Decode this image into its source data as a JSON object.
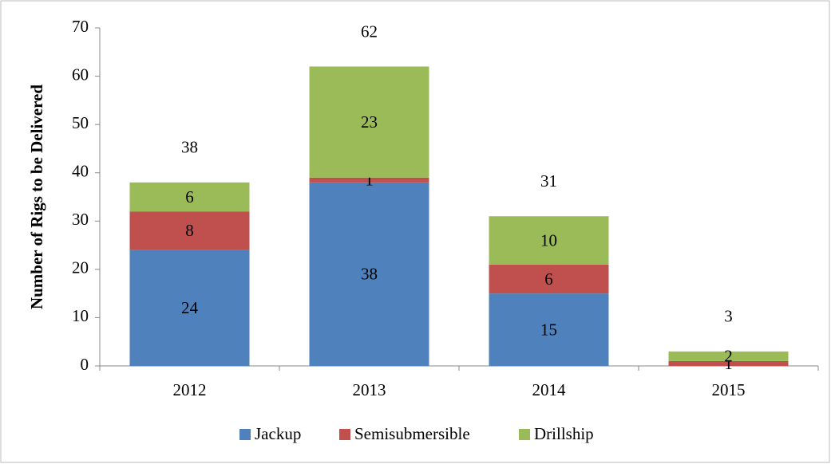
{
  "chart_data": {
    "type": "stacked_bar",
    "y_label": "Number  of Rigs to be Delivered",
    "categories": [
      "2012",
      "2013",
      "2014",
      "2015"
    ],
    "series": [
      {
        "name": "Jackup",
        "color": "#4f81bd",
        "values": [
          24,
          38,
          15,
          0
        ]
      },
      {
        "name": "Semisubmersible",
        "color": "#c0504d",
        "values": [
          8,
          1,
          6,
          1
        ]
      },
      {
        "name": "Drillship",
        "color": "#9bbb59",
        "values": [
          6,
          23,
          10,
          2
        ]
      }
    ],
    "totals": [
      38,
      62,
      31,
      3
    ],
    "ylim": [
      0,
      70
    ],
    "yticks": [
      0,
      10,
      20,
      30,
      40,
      50,
      60,
      70
    ],
    "legend": "bottom"
  }
}
